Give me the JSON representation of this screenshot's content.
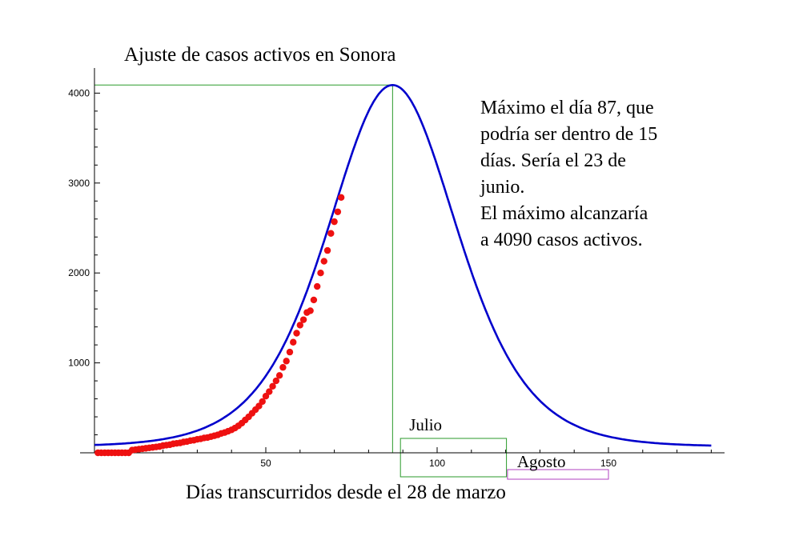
{
  "chart_data": {
    "type": "scatter",
    "title": "Ajuste de casos activos en Sonora",
    "xlabel": "Días transcurridos desde el 28 de marzo",
    "ylabel": "",
    "xlim": [
      0,
      185
    ],
    "ylim": [
      0,
      4200
    ],
    "x_ticks": [
      50,
      100,
      150
    ],
    "y_ticks": [
      1000,
      2000,
      3000,
      4000
    ],
    "grid": false,
    "fit_curve": {
      "name": "",
      "color": "#0000cc",
      "type": "logistic-derivative",
      "peak_x": 87,
      "peak_y": 4090,
      "baseline": 70,
      "scale_days": 12.7
    },
    "series": [
      {
        "name": "",
        "color": "#ee1111",
        "points": [
          [
            1,
            0
          ],
          [
            2,
            0
          ],
          [
            3,
            0
          ],
          [
            4,
            0
          ],
          [
            5,
            0
          ],
          [
            6,
            0
          ],
          [
            7,
            0
          ],
          [
            8,
            0
          ],
          [
            9,
            0
          ],
          [
            10,
            0
          ],
          [
            11,
            30
          ],
          [
            12,
            35
          ],
          [
            13,
            40
          ],
          [
            14,
            45
          ],
          [
            15,
            50
          ],
          [
            16,
            55
          ],
          [
            17,
            60
          ],
          [
            18,
            65
          ],
          [
            19,
            70
          ],
          [
            20,
            80
          ],
          [
            21,
            85
          ],
          [
            22,
            90
          ],
          [
            23,
            100
          ],
          [
            24,
            105
          ],
          [
            25,
            110
          ],
          [
            26,
            120
          ],
          [
            27,
            125
          ],
          [
            28,
            135
          ],
          [
            29,
            140
          ],
          [
            30,
            150
          ],
          [
            31,
            155
          ],
          [
            32,
            165
          ],
          [
            33,
            170
          ],
          [
            34,
            180
          ],
          [
            35,
            190
          ],
          [
            36,
            200
          ],
          [
            37,
            215
          ],
          [
            38,
            225
          ],
          [
            39,
            240
          ],
          [
            40,
            255
          ],
          [
            41,
            275
          ],
          [
            42,
            300
          ],
          [
            43,
            330
          ],
          [
            44,
            365
          ],
          [
            45,
            400
          ],
          [
            46,
            440
          ],
          [
            47,
            480
          ],
          [
            48,
            520
          ],
          [
            49,
            570
          ],
          [
            50,
            630
          ],
          [
            51,
            680
          ],
          [
            52,
            740
          ],
          [
            53,
            800
          ],
          [
            54,
            860
          ],
          [
            55,
            950
          ],
          [
            56,
            1020
          ],
          [
            57,
            1120
          ],
          [
            58,
            1230
          ],
          [
            59,
            1330
          ],
          [
            60,
            1420
          ],
          [
            61,
            1480
          ],
          [
            62,
            1560
          ],
          [
            63,
            1580
          ],
          [
            64,
            1700
          ],
          [
            65,
            1850
          ],
          [
            66,
            2000
          ],
          [
            67,
            2130
          ],
          [
            68,
            2250
          ],
          [
            69,
            2440
          ],
          [
            70,
            2570
          ],
          [
            71,
            2680
          ],
          [
            72,
            2840
          ]
        ]
      }
    ],
    "annotations": [
      {
        "text_lines": [
          "Máximo el día 87, que",
          "podría ser dentro de 15",
          "días. Sería el 23 de",
          "junio.",
          "El máximo alcanzaría",
          "a 4090 casos activos."
        ]
      }
    ],
    "peak_guides": {
      "x": 87,
      "y": 4090,
      "color": "#2a9a2a"
    },
    "month_boxes": [
      {
        "label": "Julio",
        "x_start": 90,
        "x_end": 120,
        "color": "#2a9a2a"
      },
      {
        "label": "Agosto",
        "x_start": 121,
        "x_end": 150,
        "color": "#b040c0"
      }
    ]
  }
}
